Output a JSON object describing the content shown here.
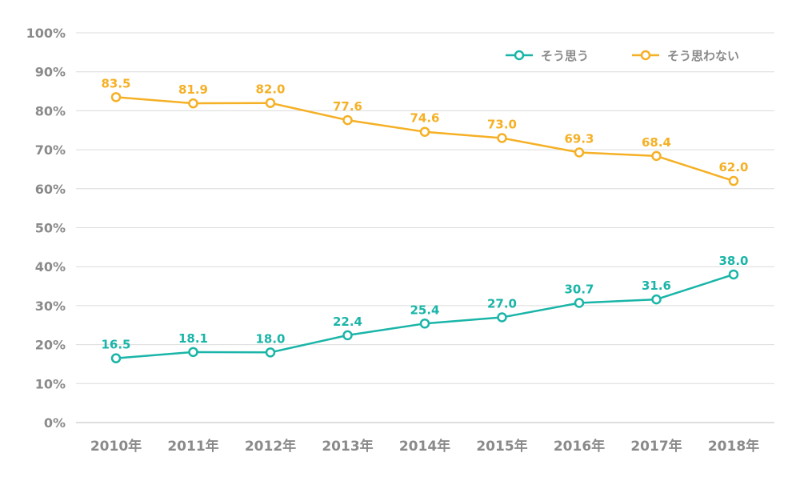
{
  "chart_data": {
    "type": "line",
    "title": "",
    "xlabel": "",
    "ylabel": "",
    "ylim": [
      0,
      100
    ],
    "y_ticks": [
      "0%",
      "10%",
      "20%",
      "30%",
      "40%",
      "50%",
      "60%",
      "70%",
      "80%",
      "90%",
      "100%"
    ],
    "categories": [
      "2010年",
      "2011年",
      "2012年",
      "2013年",
      "2014年",
      "2015年",
      "2016年",
      "2017年",
      "2018年"
    ],
    "grid": true,
    "legend_position": "top-right",
    "series": [
      {
        "name": "そう思う",
        "color": "#1ab5a8",
        "values": [
          16.5,
          18.1,
          18.0,
          22.4,
          25.4,
          27.0,
          30.7,
          31.6,
          38.0
        ],
        "labels": [
          "16.5",
          "18.1",
          "18.0",
          "22.4",
          "25.4",
          "27.0",
          "30.7",
          "31.6",
          "38.0"
        ]
      },
      {
        "name": "そう思わない",
        "color": "#f5b025",
        "values": [
          83.5,
          81.9,
          82.0,
          77.6,
          74.6,
          73.0,
          69.3,
          68.4,
          62.0
        ],
        "labels": [
          "83.5",
          "81.9",
          "82.0",
          "77.6",
          "74.6",
          "73.0",
          "69.3",
          "68.4",
          "62.0"
        ]
      }
    ]
  }
}
